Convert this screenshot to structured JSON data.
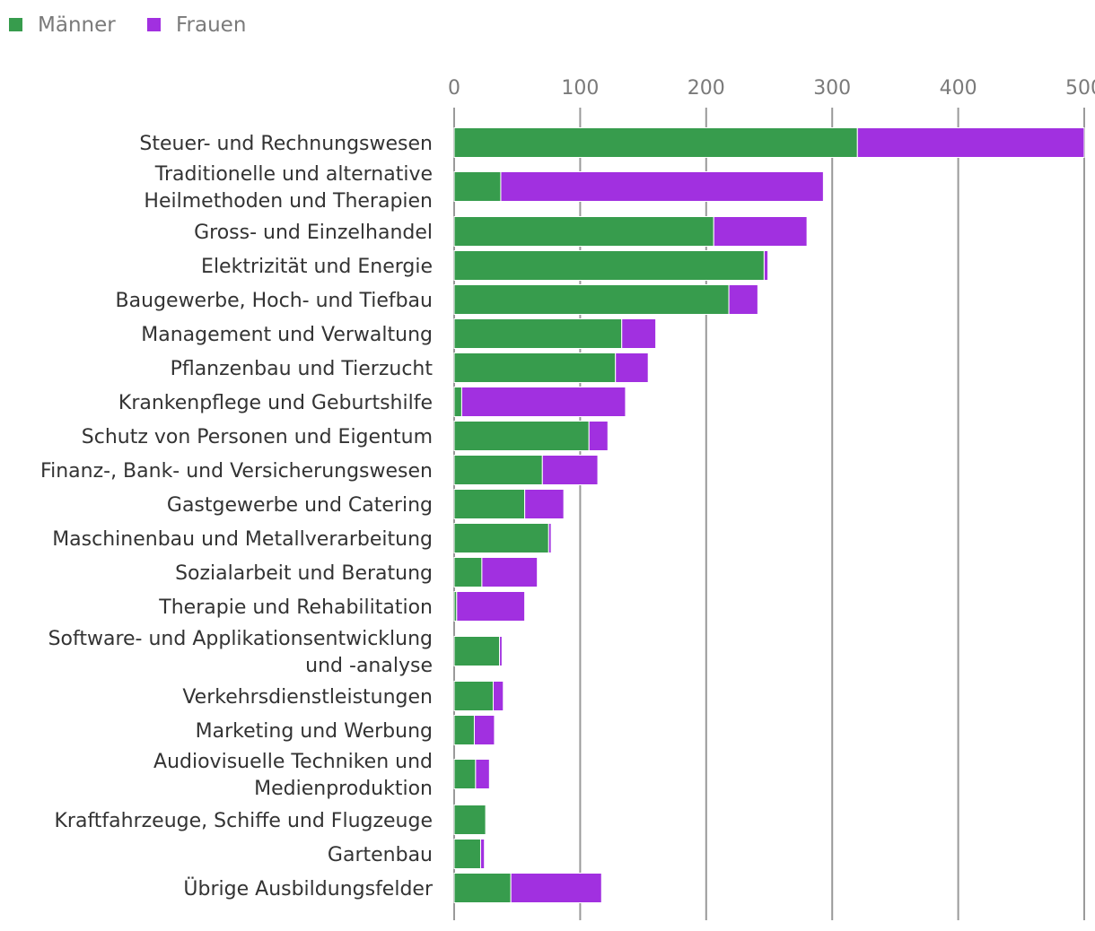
{
  "chart_data": {
    "type": "bar",
    "orientation": "horizontal",
    "stacked": true,
    "legend_position": "top-left",
    "xlim": [
      0,
      500
    ],
    "ticks": [
      0,
      100,
      200,
      300,
      400,
      500
    ],
    "series": [
      {
        "name": "Männer",
        "color": "#379c4d",
        "values": [
          320,
          37,
          206,
          246,
          218,
          133,
          128,
          6,
          107,
          70,
          56,
          75,
          22,
          2,
          36,
          31,
          16,
          17,
          25,
          21,
          45
        ]
      },
      {
        "name": "Frauen",
        "color": "#a130e0",
        "values": [
          180,
          256,
          74,
          3,
          23,
          27,
          26,
          130,
          15,
          44,
          31,
          2,
          44,
          54,
          2,
          8,
          16,
          11,
          0,
          3,
          72
        ]
      }
    ],
    "categories": [
      [
        "Steuer- und Rechnungswesen"
      ],
      [
        "Traditionelle und alternative",
        "Heilmethoden und Therapien"
      ],
      [
        "Gross- und Einzelhandel"
      ],
      [
        "Elektrizität und Energie"
      ],
      [
        "Baugewerbe, Hoch- und Tiefbau"
      ],
      [
        "Management und Verwaltung"
      ],
      [
        "Pflanzenbau und Tierzucht"
      ],
      [
        "Krankenpflege und Geburtshilfe"
      ],
      [
        "Schutz von Personen und Eigentum"
      ],
      [
        "Finanz-, Bank- und Versicherungswesen"
      ],
      [
        "Gastgewerbe und Catering"
      ],
      [
        "Maschinenbau und Metallverarbeitung"
      ],
      [
        "Sozialarbeit und Beratung"
      ],
      [
        "Therapie und Rehabilitation"
      ],
      [
        "Software- und Applikationsentwicklung",
        "und -analyse"
      ],
      [
        "Verkehrsdienstleistungen"
      ],
      [
        "Marketing und Werbung"
      ],
      [
        "Audiovisuelle Techniken und",
        "Medienproduktion"
      ],
      [
        "Kraftfahrzeuge, Schiffe und Flugzeuge"
      ],
      [
        "Gartenbau"
      ],
      [
        "Übrige Ausbildungsfelder"
      ]
    ]
  }
}
